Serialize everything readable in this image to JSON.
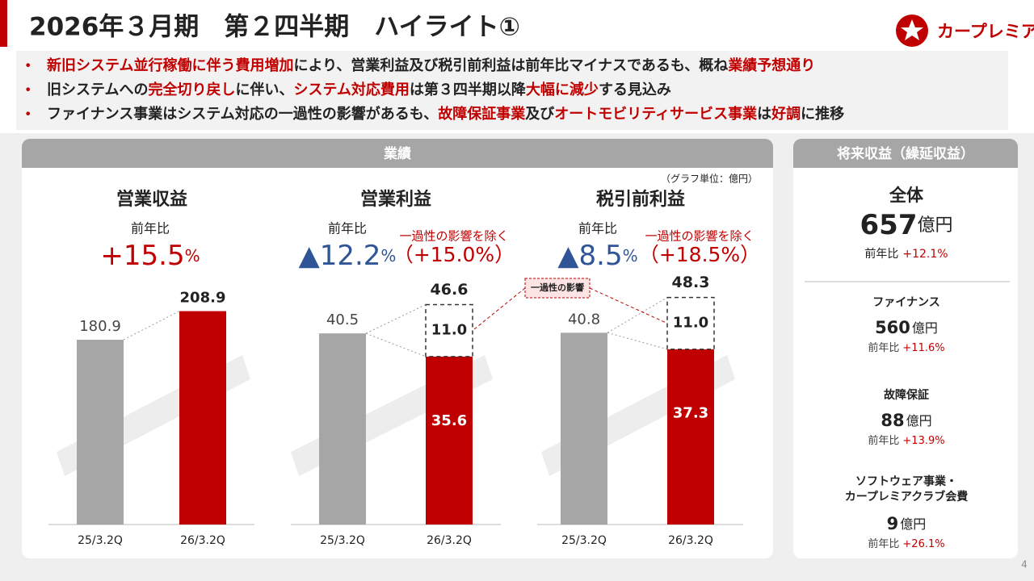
{
  "header": {
    "title": "2026年３月期　第２四半期　ハイライト①",
    "logo": "カープレミア",
    "page": "4"
  },
  "bullets": [
    [
      {
        "text": "新旧システム並行稼働に伴う費用増加",
        "em": true
      },
      {
        "text": "により、営業利益及び税引前利益は前年比マイナスであるも、概ね",
        "em": false
      },
      {
        "text": "業績予想通り",
        "em": true
      }
    ],
    [
      {
        "text": "旧システムへの",
        "em": false
      },
      {
        "text": "完全切り戻し",
        "em": true
      },
      {
        "text": "に伴い、",
        "em": false
      },
      {
        "text": "システム対応費用",
        "em": true
      },
      {
        "text": "は第３四半期以降",
        "em": false
      },
      {
        "text": "大幅に減少",
        "em": true
      },
      {
        "text": "する見込み",
        "em": false
      }
    ],
    [
      {
        "text": "ファイナンス事業はシステム対応の一過性の影響があるも、",
        "em": false
      },
      {
        "text": "故障保証事業",
        "em": true
      },
      {
        "text": "及び",
        "em": false
      },
      {
        "text": "オートモビリティサービス事業",
        "em": true
      },
      {
        "text": "は",
        "em": false
      },
      {
        "text": "好調",
        "em": true
      },
      {
        "text": "に推移",
        "em": false
      }
    ]
  ],
  "results_panel": {
    "title": "業績",
    "unit_note": "（グラフ単位：億円）"
  },
  "chart_data": [
    {
      "type": "bar",
      "title": "営業収益",
      "yoy_label": "前年比",
      "yoy": "+15.5",
      "yoy_unit": "%",
      "yoy_color": "#c00000",
      "categories": [
        "25/3.2Q",
        "26/3.2Q"
      ],
      "series": [
        {
          "colors": [
            "#a6a6a6",
            "#c00000"
          ],
          "values": [
            180.9,
            208.9
          ]
        }
      ],
      "ylim": [
        0,
        237
      ]
    },
    {
      "type": "bar",
      "title": "営業利益",
      "yoy_label": "前年比",
      "yoy": "▲12.2",
      "yoy_unit": "%",
      "yoy_color": "#2f5597",
      "adjusted_label": "一過性の影響を除く",
      "adjusted": "（+15.0%）",
      "categories": [
        "25/3.2Q",
        "26/3.2Q"
      ],
      "series": [
        {
          "colors": [
            "#a6a6a6",
            "#c00000"
          ],
          "values": [
            40.5,
            35.6
          ]
        },
        {
          "name": "一過性の影響",
          "color": "#ffffff",
          "values": [
            null,
            11.0
          ],
          "value_labels": [
            null,
            "11.0"
          ]
        }
      ],
      "totals": [
        null,
        46.6
      ],
      "ylim": [
        0,
        51.3
      ]
    },
    {
      "type": "bar",
      "title": "税引前利益",
      "yoy_label": "前年比",
      "yoy": "▲8.5",
      "yoy_unit": "%",
      "yoy_color": "#2f5597",
      "adjusted_label": "一過性の影響を除く",
      "adjusted": "（+18.5%）",
      "categories": [
        "25/3.2Q",
        "26/3.2Q"
      ],
      "series": [
        {
          "colors": [
            "#a6a6a6",
            "#c00000"
          ],
          "values": [
            40.8,
            37.3
          ]
        },
        {
          "color": "#ffffff",
          "values": [
            null,
            11.0
          ],
          "value_labels": [
            null,
            "11.0"
          ]
        }
      ],
      "totals": [
        null,
        48.3
      ],
      "ylim": [
        0,
        51.5
      ]
    }
  ],
  "future_panel": {
    "title": "将来収益（繰延収益）",
    "total": {
      "label": "全体",
      "value": 657,
      "unit": "億円",
      "yoy_label": "前年比",
      "yoy": "+12.1%"
    },
    "items": [
      {
        "label": [
          "ファイナンス"
        ],
        "value": 560,
        "unit": "億円",
        "yoy_label": "前年比",
        "yoy": "+11.6%"
      },
      {
        "label": [
          "故障保証"
        ],
        "value": 88,
        "unit": "億円",
        "yoy_label": "前年比",
        "yoy": "+13.9%"
      },
      {
        "label": [
          "ソフトウェア事業・",
          "カープレミアクラブ会費"
        ],
        "value": 9,
        "unit": "億円",
        "yoy_label": "前年比",
        "yoy": "+26.1%"
      }
    ]
  }
}
